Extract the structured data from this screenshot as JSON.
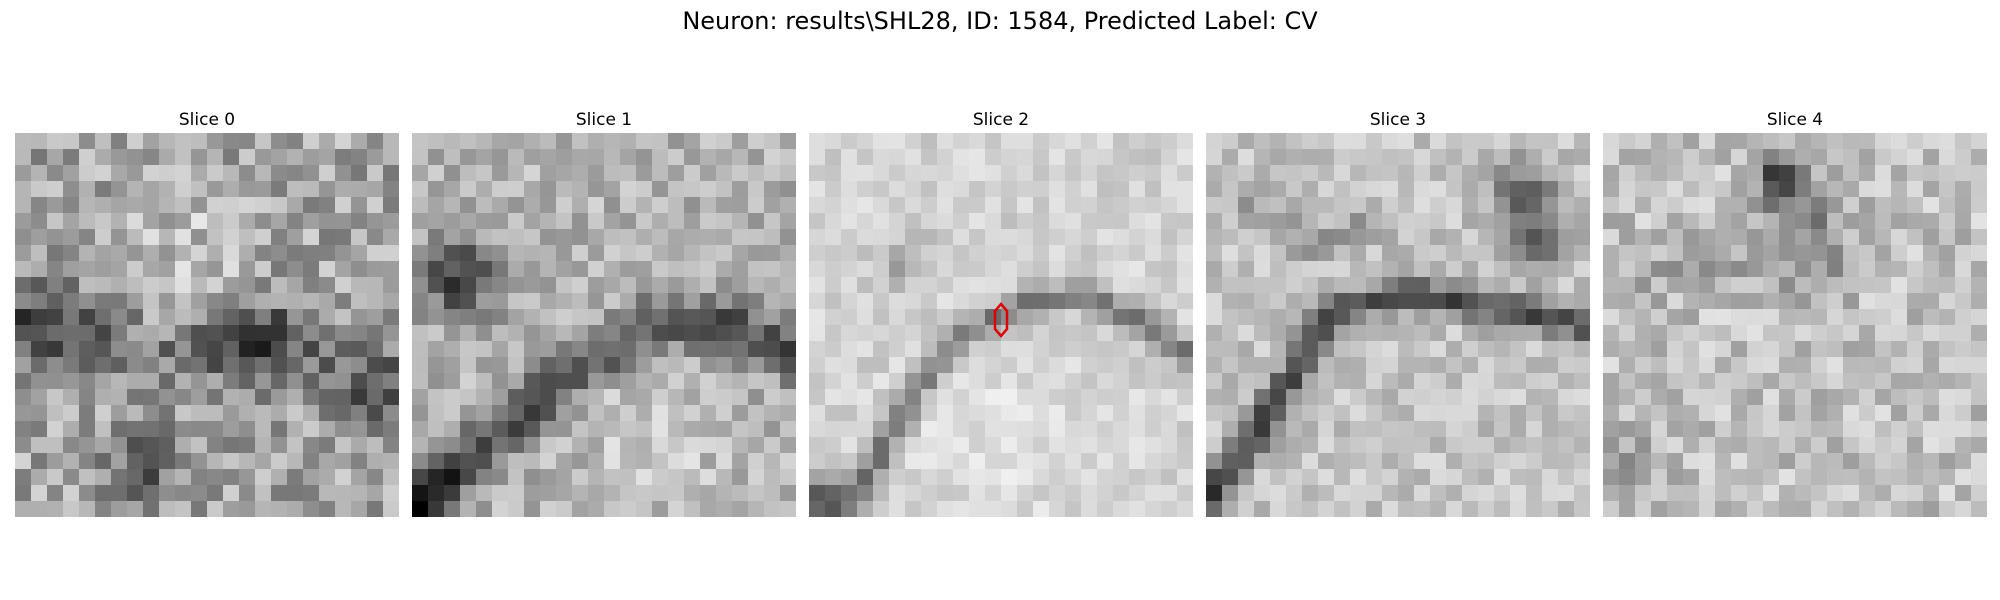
{
  "figure": {
    "title": "Neuron: results\\SHL28, ID: 1584, Predicted Label: CV"
  },
  "panels": [
    {
      "title": "Slice 0",
      "pattern": "noisy-mottled-dark-blobs"
    },
    {
      "title": "Slice 1",
      "pattern": "dark-blob-upper-left-dark-band"
    },
    {
      "title": "Slice 2",
      "pattern": "light-thin-arc-with-red-marker"
    },
    {
      "title": "Slice 3",
      "pattern": "dark-diagonal-band-from-lower-left"
    },
    {
      "title": "Slice 4",
      "pattern": "light-noisy-dark-spot-top"
    }
  ],
  "marker": {
    "color": "#e00000",
    "shape": "hexagon-outline",
    "panel": "Slice 2"
  }
}
